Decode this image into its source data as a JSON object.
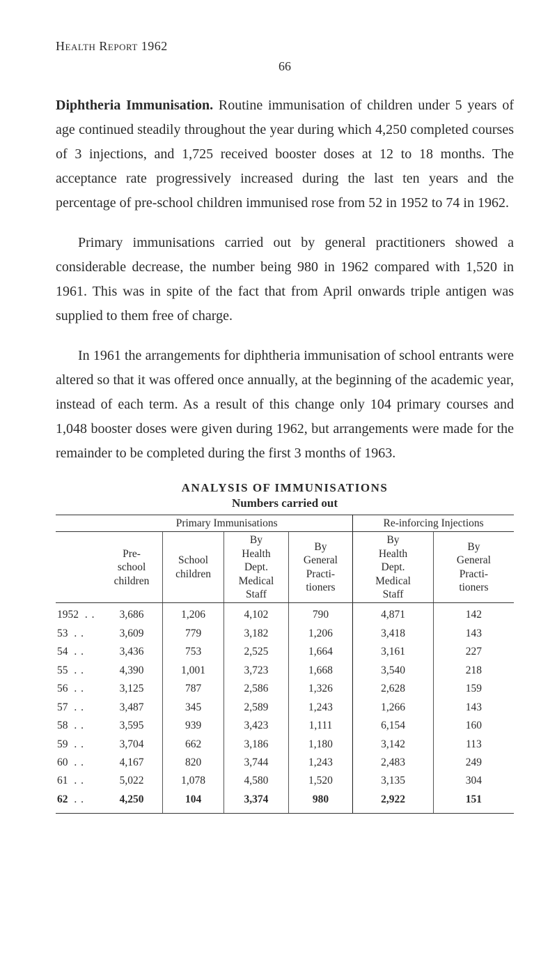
{
  "runningHead": "Health Report 1962",
  "pageNumber": "66",
  "paragraphs": {
    "p1_lead_bold": "Diphtheria Immunisation.",
    "p1_rest": " Routine immunisation of children under 5 years of age continued steadily throughout the year during which 4,250 completed courses of 3 injections, and 1,725 received booster doses at 12 to 18 months. The acceptance rate progressively increased during the last ten years and the percentage of pre-school children immunised rose from 52 in 1952 to 74 in 1962.",
    "p2": "Primary immunisations carried out by general practitioners showed a considerable decrease, the number being 980 in 1962 compared with 1,520 in 1961. This was in spite of the fact that from April onwards triple antigen was supplied to them free of charge.",
    "p3": "In 1961 the arrangements for diphtheria immunisation of school entrants were altered so that it was offered once annually, at the beginning of the academic year, instead of each term. As a result of this change only 104 primary courses and 1,048 booster doses were given during 1962, but arrangements were made for the remainder to be completed during the first 3 months of 1963."
  },
  "table": {
    "title": "ANALYSIS OF IMMUNISATIONS",
    "subtitle": "Numbers carried out",
    "groupHeaders": {
      "primary": "Primary Immunisations",
      "reinforcing": "Re-inforcing Injections"
    },
    "columns": {
      "c1": "Pre-\nschool\nchildren",
      "c2": "School\nchildren",
      "c3": "By\nHealth\nDept.\nMedical\nStaff",
      "c4": "By\nGeneral\nPracti-\ntioners",
      "c5": "By\nHealth\nDept.\nMedical\nStaff",
      "c6": "By\nGeneral\nPracti-\ntioners"
    },
    "rows": [
      {
        "year": "1952",
        "c1": "3,686",
        "c2": "1,206",
        "c3": "4,102",
        "c4": "790",
        "c5": "4,871",
        "c6": "142"
      },
      {
        "year": "53",
        "c1": "3,609",
        "c2": "779",
        "c3": "3,182",
        "c4": "1,206",
        "c5": "3,418",
        "c6": "143"
      },
      {
        "year": "54",
        "c1": "3,436",
        "c2": "753",
        "c3": "2,525",
        "c4": "1,664",
        "c5": "3,161",
        "c6": "227"
      },
      {
        "year": "55",
        "c1": "4,390",
        "c2": "1,001",
        "c3": "3,723",
        "c4": "1,668",
        "c5": "3,540",
        "c6": "218"
      },
      {
        "year": "56",
        "c1": "3,125",
        "c2": "787",
        "c3": "2,586",
        "c4": "1,326",
        "c5": "2,628",
        "c6": "159"
      },
      {
        "year": "57",
        "c1": "3,487",
        "c2": "345",
        "c3": "2,589",
        "c4": "1,243",
        "c5": "1,266",
        "c6": "143"
      },
      {
        "year": "58",
        "c1": "3,595",
        "c2": "939",
        "c3": "3,423",
        "c4": "1,111",
        "c5": "6,154",
        "c6": "160"
      },
      {
        "year": "59",
        "c1": "3,704",
        "c2": "662",
        "c3": "3,186",
        "c4": "1,180",
        "c5": "3,142",
        "c6": "113"
      },
      {
        "year": "60",
        "c1": "4,167",
        "c2": "820",
        "c3": "3,744",
        "c4": "1,243",
        "c5": "2,483",
        "c6": "249"
      },
      {
        "year": "61",
        "c1": "5,022",
        "c2": "1,078",
        "c3": "4,580",
        "c4": "1,520",
        "c5": "3,135",
        "c6": "304"
      },
      {
        "year": "62",
        "c1": "4,250",
        "c2": "104",
        "c3": "3,374",
        "c4": "980",
        "c5": "2,922",
        "c6": "151"
      }
    ]
  }
}
